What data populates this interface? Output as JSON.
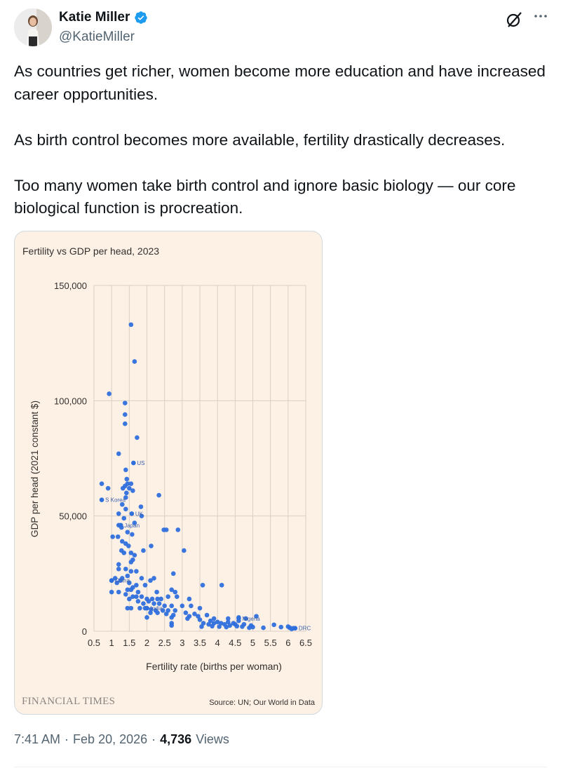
{
  "author": {
    "name": "Katie Miller",
    "handle": "@KatieMiller",
    "verified_color": "#1d9bf0"
  },
  "icons": [
    "grok-icon",
    "more-icon",
    "verified-badge-icon"
  ],
  "tweet": {
    "paragraphs": [
      "As countries get richer, women become more education and have increased career opportunities.",
      "As birth control becomes more available, fertility drastically decreases.",
      "Too many women take birth control and ignore basic biology — our core biological function is procreation."
    ],
    "time": "7:41 AM",
    "date": "Feb 20, 2026",
    "views_count": "4,736",
    "views_label": "Views"
  },
  "media": {
    "publisher": "FINANCIAL TIMES",
    "source": "Source: UN; Our World in Data",
    "background": "#fdf1e6",
    "point_color": "#2f6fdc"
  },
  "chart_data": {
    "type": "scatter",
    "title": "Fertility vs GDP per head, 2023",
    "xlabel": "Fertility rate (births per woman)",
    "ylabel": "GDP per head (2021 constant $)",
    "xlim": [
      0.5,
      6.5
    ],
    "ylim": [
      0,
      150000
    ],
    "x_ticks": [
      "0.5",
      "1",
      "1.5",
      "2",
      "2.5",
      "3",
      "3.5",
      "4",
      "4.5",
      "5",
      "5.5",
      "6",
      "6.5"
    ],
    "y_ticks": [
      "0",
      "50,000",
      "100,000",
      "150,000"
    ],
    "grid": true,
    "labeled_points": [
      {
        "label": "US",
        "x": 1.62,
        "y": 73000
      },
      {
        "label": "S Korea",
        "x": 0.72,
        "y": 57000
      },
      {
        "label": "UK",
        "x": 1.57,
        "y": 51000
      },
      {
        "label": "Japan",
        "x": 1.26,
        "y": 46000
      },
      {
        "label": "China",
        "x": 1.0,
        "y": 22000
      },
      {
        "label": "India",
        "x": 2.0,
        "y": 10000
      },
      {
        "label": "Nigeria",
        "x": 4.6,
        "y": 5500
      },
      {
        "label": "DRC",
        "x": 6.2,
        "y": 1300
      }
    ],
    "points": [
      [
        1.55,
        133000
      ],
      [
        1.65,
        117000
      ],
      [
        0.93,
        103000
      ],
      [
        1.38,
        99000
      ],
      [
        1.38,
        94000
      ],
      [
        1.38,
        90000
      ],
      [
        1.72,
        84000
      ],
      [
        1.2,
        77000
      ],
      [
        1.4,
        70000
      ],
      [
        1.43,
        66000
      ],
      [
        1.55,
        64000
      ],
      [
        1.45,
        64000
      ],
      [
        1.38,
        63000
      ],
      [
        1.32,
        62000
      ],
      [
        1.5,
        62000
      ],
      [
        1.6,
        61000
      ],
      [
        0.72,
        64000
      ],
      [
        0.9,
        62000
      ],
      [
        1.4,
        58000
      ],
      [
        1.42,
        60000
      ],
      [
        1.3,
        55000
      ],
      [
        2.34,
        59000
      ],
      [
        1.83,
        54000
      ],
      [
        1.4,
        53000
      ],
      [
        1.85,
        50000
      ],
      [
        1.2,
        51000
      ],
      [
        1.35,
        49000
      ],
      [
        1.65,
        47000
      ],
      [
        1.2,
        46000
      ],
      [
        1.28,
        45000
      ],
      [
        1.45,
        43000
      ],
      [
        1.58,
        42000
      ],
      [
        2.48,
        44000
      ],
      [
        2.55,
        44000
      ],
      [
        2.88,
        44000
      ],
      [
        1.18,
        41000
      ],
      [
        1.03,
        41000
      ],
      [
        1.3,
        39000
      ],
      [
        1.4,
        38000
      ],
      [
        1.48,
        37000
      ],
      [
        1.28,
        35000
      ],
      [
        1.35,
        34000
      ],
      [
        1.55,
        34000
      ],
      [
        1.65,
        33000
      ],
      [
        2.12,
        37000
      ],
      [
        1.9,
        35000
      ],
      [
        3.05,
        35000
      ],
      [
        1.6,
        31000
      ],
      [
        1.55,
        30000
      ],
      [
        1.2,
        29000
      ],
      [
        1.2,
        27000
      ],
      [
        1.4,
        27000
      ],
      [
        1.55,
        26000
      ],
      [
        1.7,
        26000
      ],
      [
        1.45,
        24000
      ],
      [
        1.3,
        23000
      ],
      [
        1.85,
        23000
      ],
      [
        1.25,
        22000
      ],
      [
        1.1,
        23000
      ],
      [
        1.0,
        22000
      ],
      [
        1.15,
        21000
      ],
      [
        1.5,
        21000
      ],
      [
        1.7,
        20000
      ],
      [
        2.1,
        22000
      ],
      [
        2.2,
        23000
      ],
      [
        2.75,
        25000
      ],
      [
        1.95,
        20000
      ],
      [
        1.6,
        19000
      ],
      [
        1.55,
        18000
      ],
      [
        1.45,
        18000
      ],
      [
        1.75,
        17000
      ],
      [
        2.28,
        17000
      ],
      [
        2.7,
        18000
      ],
      [
        2.8,
        17000
      ],
      [
        3.58,
        20000
      ],
      [
        4.12,
        20000
      ],
      [
        1.0,
        17000
      ],
      [
        1.2,
        17000
      ],
      [
        1.4,
        16000
      ],
      [
        1.6,
        15000
      ],
      [
        1.7,
        15000
      ],
      [
        1.85,
        15000
      ],
      [
        2.0,
        14000
      ],
      [
        2.15,
        14000
      ],
      [
        2.3,
        14000
      ],
      [
        2.4,
        14000
      ],
      [
        2.6,
        15000
      ],
      [
        2.85,
        15000
      ],
      [
        3.2,
        14000
      ],
      [
        1.5,
        14000
      ],
      [
        1.75,
        13000
      ],
      [
        1.9,
        12000
      ],
      [
        2.05,
        13000
      ],
      [
        2.2,
        12000
      ],
      [
        2.35,
        12000
      ],
      [
        2.5,
        11000
      ],
      [
        2.7,
        11000
      ],
      [
        3.0,
        11000
      ],
      [
        3.25,
        11000
      ],
      [
        3.5,
        10000
      ],
      [
        1.45,
        10000
      ],
      [
        1.55,
        10000
      ],
      [
        1.8,
        10000
      ],
      [
        1.95,
        10000
      ],
      [
        2.12,
        9500
      ],
      [
        2.25,
        9000
      ],
      [
        2.45,
        9000
      ],
      [
        2.6,
        9000
      ],
      [
        2.8,
        9000
      ],
      [
        3.1,
        8000
      ],
      [
        3.35,
        7500
      ],
      [
        3.7,
        7000
      ],
      [
        2.1,
        8000
      ],
      [
        2.3,
        8000
      ],
      [
        2.55,
        7500
      ],
      [
        2.75,
        7000
      ],
      [
        3.2,
        6500
      ],
      [
        3.45,
        6500
      ],
      [
        3.9,
        5500
      ],
      [
        4.3,
        5500
      ],
      [
        4.6,
        6000
      ],
      [
        4.8,
        5500
      ],
      [
        5.1,
        6500
      ],
      [
        2.0,
        6000
      ],
      [
        2.7,
        6000
      ],
      [
        3.15,
        5500
      ],
      [
        3.5,
        5000
      ],
      [
        3.8,
        4500
      ],
      [
        4.0,
        4000
      ],
      [
        4.1,
        3500
      ],
      [
        4.3,
        4000
      ],
      [
        4.45,
        3500
      ],
      [
        4.6,
        4500
      ],
      [
        4.75,
        3000
      ],
      [
        4.95,
        2500
      ],
      [
        3.6,
        3500
      ],
      [
        3.75,
        3000
      ],
      [
        3.9,
        3500
      ],
      [
        4.2,
        3000
      ],
      [
        4.35,
        2500
      ],
      [
        4.5,
        3000
      ],
      [
        4.7,
        2000
      ],
      [
        5.0,
        1800
      ],
      [
        2.7,
        3500
      ],
      [
        2.7,
        2500
      ],
      [
        3.55,
        2000
      ],
      [
        3.85,
        2200
      ],
      [
        4.05,
        2000
      ],
      [
        4.25,
        1800
      ],
      [
        4.55,
        2200
      ],
      [
        4.9,
        1500
      ],
      [
        5.3,
        1500
      ],
      [
        5.6,
        2800
      ],
      [
        6.0,
        2000
      ],
      [
        6.05,
        1500
      ],
      [
        6.15,
        1300
      ],
      [
        6.1,
        1000
      ],
      [
        5.8,
        1800
      ]
    ]
  }
}
